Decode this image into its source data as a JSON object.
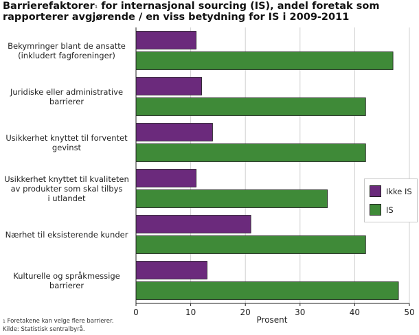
{
  "chart_data": {
    "type": "bar",
    "orientation": "horizontal",
    "title_main": "Barrierefaktorer",
    "title_sup": "1",
    "title_rest": " for internasjonal sourcing (IS), andel foretak som rapporterer avgjørende / en viss betydning for IS i 2009-2011",
    "xlabel": "Prosent",
    "xlim": [
      0,
      50
    ],
    "xticks": [
      0,
      10,
      20,
      30,
      40,
      50
    ],
    "grid": true,
    "categories": [
      [
        "Bekymringer blant de ansatte",
        "(inkludert fagforeninger)"
      ],
      [
        "Juridiske eller administrative",
        "barrierer"
      ],
      [
        "Usikkerhet knyttet til forventet",
        "gevinst"
      ],
      [
        "Usikkerhet knyttet til kvaliteten",
        "av produkter som skal tilbys",
        "i utlandet"
      ],
      [
        "Nærhet til eksisterende kunder"
      ],
      [
        "Kulturelle og språkmessige",
        "barrierer"
      ]
    ],
    "series": [
      {
        "name": "Ikke IS",
        "color": "#6b2a7c",
        "values": [
          11,
          12,
          14,
          11,
          21,
          13
        ]
      },
      {
        "name": "IS",
        "color": "#3f8a38",
        "values": [
          47,
          42,
          42,
          35,
          42,
          48
        ]
      }
    ],
    "legend_position": "right"
  },
  "footnotes": {
    "note_sup": "1",
    "note_text": " Foretakene kan velge flere barrierer.",
    "source": "Kilde: Statistisk sentralbyrå."
  }
}
